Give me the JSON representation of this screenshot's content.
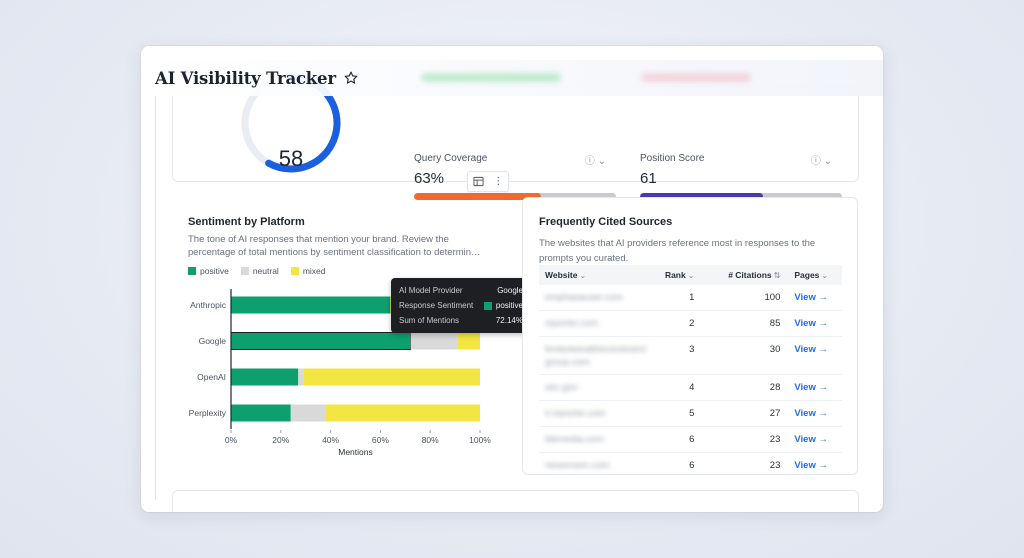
{
  "header": {
    "title": "AI Visibility Tracker",
    "star_icon": "star-outline-icon"
  },
  "score_card": {
    "score": "58",
    "score_fraction": 0.58,
    "metrics": [
      {
        "label": "Query Coverage",
        "value": "63%",
        "fraction": 0.63,
        "color": "#ee6a2f"
      },
      {
        "label": "Position Score",
        "value": "61",
        "fraction": 0.61,
        "color": "#4b3aa8"
      }
    ],
    "info_icon": "ⓘ",
    "dropdown_icon": "⌄",
    "accent_color": "#1a5fe0"
  },
  "card_tools": {
    "table_icon": "table-icon",
    "menu_icon": "⋮"
  },
  "sentiment": {
    "title": "Sentiment by Platform",
    "description": "The tone of AI responses that mention your brand. Review the percentage of total mentions by sentiment classification to determin…"
  },
  "chart_data": {
    "type": "bar",
    "orientation": "horizontal",
    "stacked": true,
    "categories": [
      "Anthropic",
      "Google",
      "OpenAI",
      "Perplexity"
    ],
    "series": [
      {
        "name": "positive",
        "color": "#0e9f6e",
        "values": [
          64,
          72.14,
          27,
          24
        ]
      },
      {
        "name": "neutral",
        "color": "#d9d9d9",
        "values": [
          0,
          18.86,
          2,
          14
        ]
      },
      {
        "name": "mixed",
        "color": "#f3e643",
        "values": [
          36,
          9,
          71,
          62
        ]
      }
    ],
    "xlabel": "Mentions",
    "xlim": [
      0,
      100
    ],
    "xticks": [
      "0%",
      "20%",
      "40%",
      "60%",
      "80%",
      "100%"
    ],
    "legend": "top-left",
    "highlighted_category": "Google"
  },
  "tooltip": {
    "rows": [
      {
        "key": "AI Model Provider",
        "value": "Google"
      },
      {
        "key": "Response Sentiment",
        "value": "positive"
      },
      {
        "key": "Sum of Mentions",
        "value": "72.14%"
      }
    ]
  },
  "sources": {
    "title": "Frequently Cited Sources",
    "description": "The websites that AI providers reference most in responses to the prompts you curated.",
    "columns": {
      "website": "Website",
      "rank": "Rank",
      "citations": "# Citations",
      "pages": "Pages"
    },
    "rows": [
      {
        "website": "emphasauser.com",
        "rank": "1",
        "citations": "100",
        "pages": "View →"
      },
      {
        "website": "reporter.com",
        "rank": "2",
        "citations": "85",
        "pages": "View →"
      },
      {
        "website": "limitedwealthinvestment group.com",
        "rank": "3",
        "citations": "30",
        "pages": "View →"
      },
      {
        "website": "sec.gov",
        "rank": "4",
        "citations": "28",
        "pages": "View →"
      },
      {
        "website": "ir.reporter.com",
        "rank": "5",
        "citations": "27",
        "pages": "View →"
      },
      {
        "website": "ibkmedia.com",
        "rank": "6",
        "citations": "23",
        "pages": "View →"
      },
      {
        "website": "newsroom.com",
        "rank": "6",
        "citations": "23",
        "pages": "View →"
      }
    ]
  }
}
